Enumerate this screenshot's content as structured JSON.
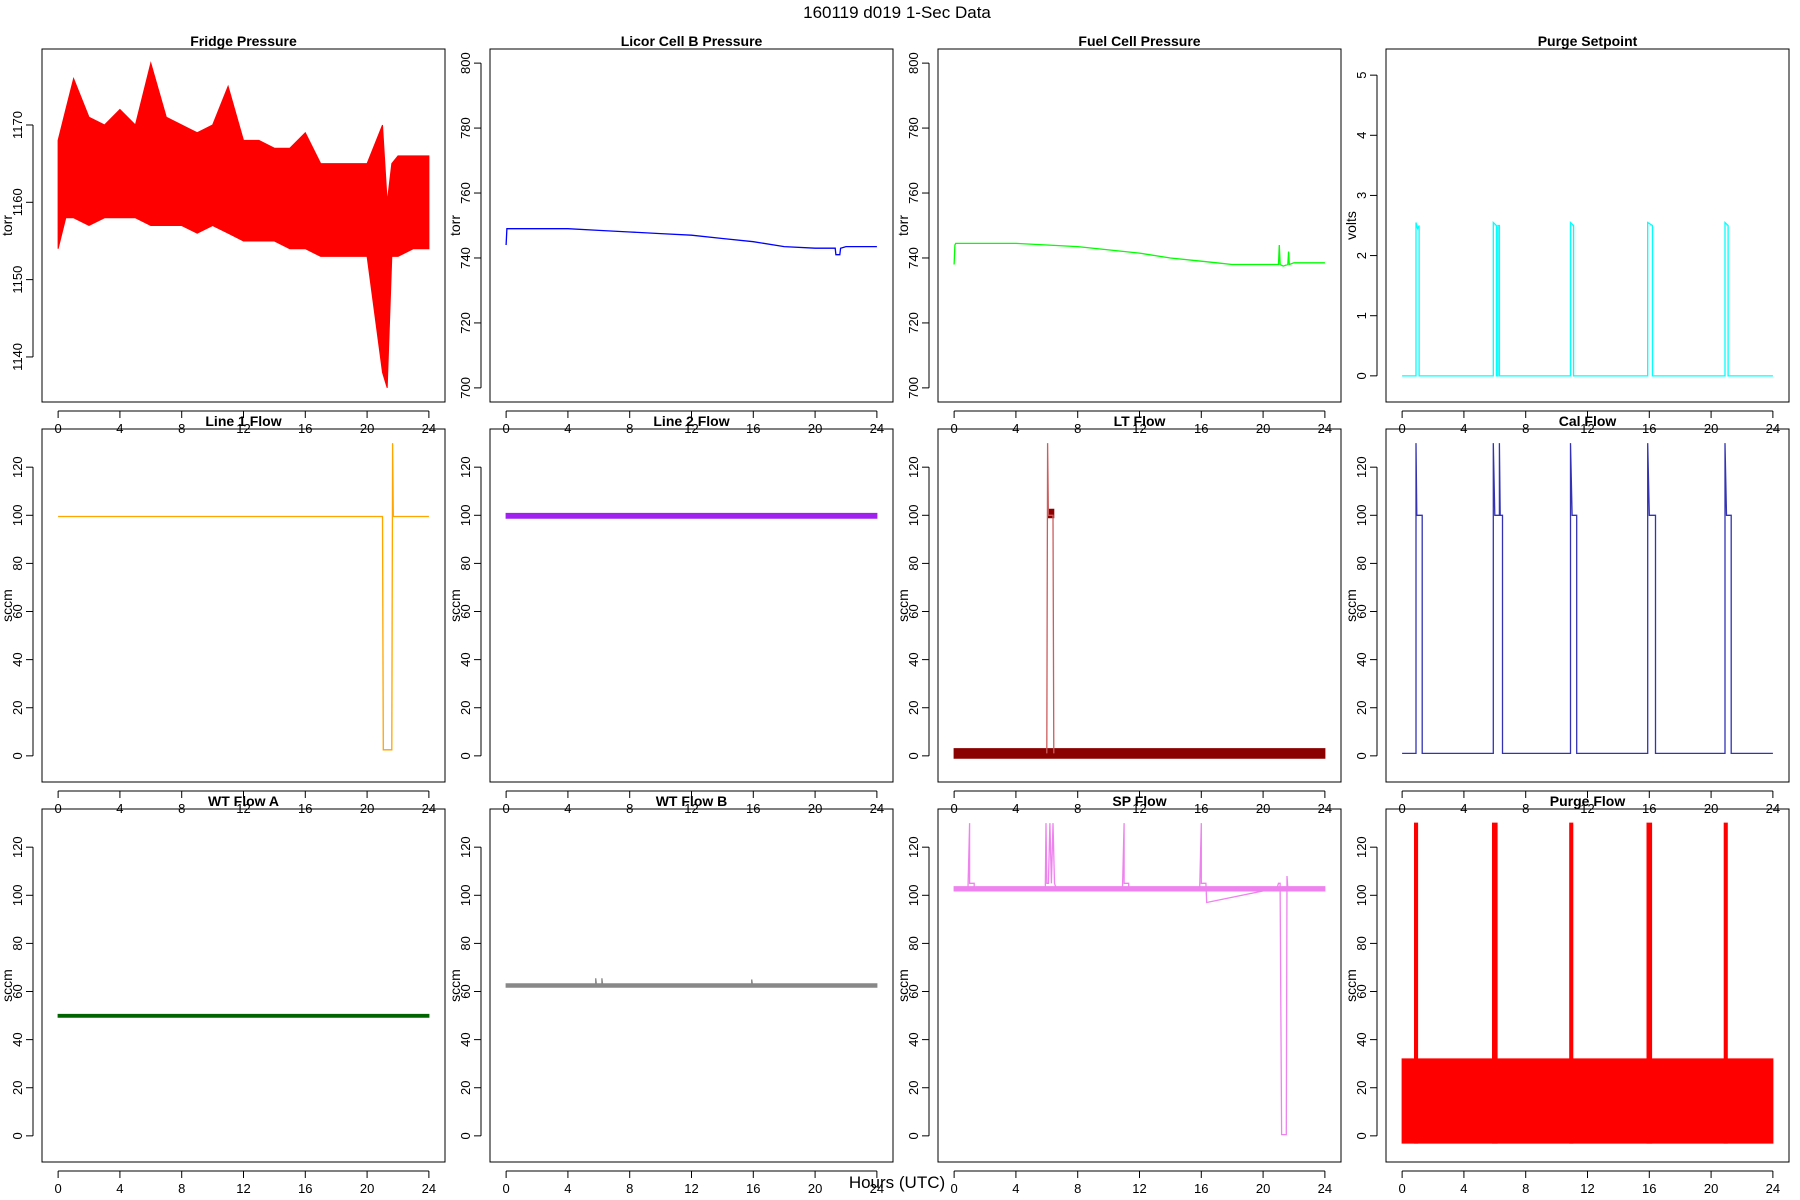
{
  "figure": {
    "title": "160119   d019   1-Sec Data",
    "xlabel": "Hours (UTC)"
  },
  "chart_data": [
    {
      "type": "line",
      "title": "Fridge Pressure",
      "ylabel": "torr",
      "color": "#ff0000",
      "xlim": [
        0,
        24
      ],
      "ylim": [
        1136,
        1178
      ],
      "xticks": [
        0,
        4,
        8,
        12,
        16,
        20,
        24
      ],
      "yticks": [
        1140,
        1150,
        1160,
        1170
      ],
      "series": [
        {
          "kind": "band",
          "color": "#ff0000",
          "x": [
            0,
            0.5,
            1,
            2,
            3,
            4,
            5,
            6,
            7,
            8,
            9,
            10,
            11,
            12,
            13,
            14,
            15,
            16,
            17,
            18,
            19,
            20,
            21,
            21.3,
            21.6,
            22,
            23,
            24
          ],
          "low": [
            1154,
            1158,
            1158,
            1157,
            1158,
            1158,
            1158,
            1157,
            1157,
            1157,
            1156,
            1157,
            1156,
            1155,
            1155,
            1155,
            1154,
            1154,
            1153,
            1153,
            1153,
            1153,
            1138,
            1136,
            1153,
            1153,
            1154,
            1154
          ],
          "high": [
            1168,
            1172,
            1176,
            1171,
            1170,
            1172,
            1170,
            1178,
            1171,
            1170,
            1169,
            1170,
            1175,
            1168,
            1168,
            1167,
            1167,
            1169,
            1165,
            1165,
            1165,
            1165,
            1170,
            1160,
            1165,
            1166,
            1166,
            1166
          ]
        }
      ]
    },
    {
      "type": "line",
      "title": "Licor Cell B Pressure",
      "ylabel": "torr",
      "color": "#0000ff",
      "xlim": [
        0,
        24
      ],
      "ylim": [
        700,
        800
      ],
      "xticks": [
        0,
        4,
        8,
        12,
        16,
        20,
        24
      ],
      "yticks": [
        700,
        720,
        740,
        760,
        780,
        800
      ],
      "series": [
        {
          "kind": "line",
          "color": "#0000ff",
          "x": [
            0,
            0.05,
            0.1,
            2,
            4,
            6,
            8,
            10,
            12,
            14,
            16,
            18,
            20,
            21,
            21.3,
            21.35,
            21.6,
            21.65,
            22,
            24
          ],
          "y": [
            744,
            749,
            749,
            749,
            749,
            748.5,
            748,
            747.5,
            747,
            746,
            745,
            743.5,
            743,
            743,
            743,
            741,
            741,
            743,
            743.5,
            743.5
          ]
        }
      ]
    },
    {
      "type": "line",
      "title": "Fuel Cell Pressure",
      "ylabel": "torr",
      "color": "#00ff00",
      "xlim": [
        0,
        24
      ],
      "ylim": [
        700,
        800
      ],
      "xticks": [
        0,
        4,
        8,
        12,
        16,
        20,
        24
      ],
      "yticks": [
        700,
        720,
        740,
        760,
        780,
        800
      ],
      "series": [
        {
          "kind": "line",
          "color": "#00ff00",
          "x": [
            0,
            0.05,
            0.1,
            2,
            4,
            6,
            8,
            10,
            12,
            14,
            16,
            17,
            18,
            19,
            20,
            21,
            21.05,
            21.1,
            21.3,
            21.6,
            21.65,
            21.7,
            22,
            24
          ],
          "y": [
            738,
            744,
            744.5,
            744.5,
            744.5,
            744,
            743.5,
            742.5,
            741.5,
            740,
            739,
            738.5,
            738,
            738,
            738,
            738,
            744,
            738,
            737.5,
            738,
            742,
            738,
            738.5,
            738.5
          ]
        }
      ]
    },
    {
      "type": "line",
      "title": "Purge Setpoint",
      "ylabel": "volts",
      "color": "#00ffff",
      "xlim": [
        0,
        24
      ],
      "ylim": [
        -0.2,
        5.2
      ],
      "xticks": [
        0,
        4,
        8,
        12,
        16,
        20,
        24
      ],
      "yticks": [
        0,
        1,
        2,
        3,
        4,
        5
      ],
      "series": [
        {
          "kind": "line",
          "color": "#00ffff",
          "x": [
            0,
            0.9,
            0.9,
            1.0,
            1.1,
            1.1,
            5.9,
            5.9,
            6.1,
            6.1,
            6.2,
            6.2,
            6.3,
            6.3,
            10.9,
            10.9,
            11.1,
            11.1,
            15.9,
            15.9,
            16.2,
            16.2,
            20.9,
            20.9,
            21.1,
            21.1,
            24
          ],
          "y": [
            0,
            0,
            2.55,
            2.45,
            2.5,
            0,
            0,
            2.55,
            2.5,
            0,
            0,
            2.5,
            2.5,
            0,
            0,
            2.55,
            2.5,
            0,
            0,
            2.55,
            2.5,
            0,
            0,
            2.55,
            2.5,
            0,
            0
          ]
        }
      ]
    },
    {
      "type": "line",
      "title": "Line 1 Flow",
      "ylabel": "sccm",
      "color": "#ffa500",
      "xlim": [
        0,
        24
      ],
      "ylim": [
        -5,
        130
      ],
      "xticks": [
        0,
        4,
        8,
        12,
        16,
        20,
        24
      ],
      "yticks": [
        0,
        20,
        40,
        60,
        80,
        100,
        120
      ],
      "series": [
        {
          "kind": "line",
          "color": "#ffa500",
          "x": [
            0,
            21,
            21.05,
            21.6,
            21.65,
            21.7,
            24
          ],
          "y": [
            99.5,
            99.5,
            2.5,
            2.5,
            130,
            99.5,
            99.5
          ]
        }
      ]
    },
    {
      "type": "line",
      "title": "Line 2 Flow",
      "ylabel": "sccm",
      "color": "#a020f0",
      "xlim": [
        0,
        24
      ],
      "ylim": [
        -5,
        130
      ],
      "xticks": [
        0,
        4,
        8,
        12,
        16,
        20,
        24
      ],
      "yticks": [
        0,
        20,
        40,
        60,
        80,
        100,
        120
      ],
      "series": [
        {
          "kind": "band",
          "color": "#a020f0",
          "x": [
            0,
            24
          ],
          "low": [
            98.8,
            98.8
          ],
          "high": [
            100.8,
            100.8
          ]
        }
      ]
    },
    {
      "type": "line",
      "title": "LT Flow",
      "ylabel": "sccm",
      "color": "#8b0000",
      "xlim": [
        0,
        24
      ],
      "ylim": [
        -5,
        130
      ],
      "xticks": [
        0,
        4,
        8,
        12,
        16,
        20,
        24
      ],
      "yticks": [
        0,
        20,
        40,
        60,
        80,
        100,
        120
      ],
      "series": [
        {
          "kind": "band",
          "color": "#8b0000",
          "x": [
            0,
            24
          ],
          "low": [
            -1,
            -1
          ],
          "high": [
            3,
            3
          ]
        },
        {
          "kind": "band",
          "color": "#8b0000",
          "x": [
            6.05,
            6.45
          ],
          "low": [
            99,
            99
          ],
          "high": [
            102.5,
            102.5
          ]
        },
        {
          "kind": "line",
          "color": "#cd5c5c",
          "x": [
            6.0,
            6.05,
            6.1,
            6.4,
            6.45
          ],
          "y": [
            1,
            130,
            100,
            100,
            1
          ]
        }
      ]
    },
    {
      "type": "line",
      "title": "Cal Flow",
      "ylabel": "sccm",
      "color": "#00008b",
      "xlim": [
        0,
        24
      ],
      "ylim": [
        -5,
        130
      ],
      "xticks": [
        0,
        4,
        8,
        12,
        16,
        20,
        24
      ],
      "yticks": [
        0,
        20,
        40,
        60,
        80,
        100,
        120
      ],
      "series": [
        {
          "kind": "line",
          "color": "#3333b3",
          "x": [
            0,
            0.9,
            0.9,
            0.95,
            1.05,
            1.3,
            1.3,
            5.9,
            5.9,
            6.0,
            6.1,
            6.3,
            6.3,
            6.35,
            6.5,
            6.5,
            10.9,
            10.9,
            11.0,
            11.1,
            11.3,
            11.3,
            15.9,
            15.9,
            16.0,
            16.1,
            16.4,
            16.4,
            20.9,
            20.9,
            21.0,
            21.1,
            21.3,
            21.3,
            24
          ],
          "y": [
            1,
            1,
            130,
            100,
            100,
            100,
            1,
            1,
            130,
            100,
            100,
            100,
            130,
            100,
            100,
            1,
            1,
            130,
            100,
            100,
            100,
            1,
            1,
            130,
            100,
            100,
            100,
            1,
            1,
            130,
            100,
            100,
            100,
            1,
            1
          ]
        }
      ]
    },
    {
      "type": "line",
      "title": "WT Flow A",
      "ylabel": "sccm",
      "color": "#006400",
      "xlim": [
        0,
        24
      ],
      "ylim": [
        -5,
        130
      ],
      "xticks": [
        0,
        4,
        8,
        12,
        16,
        20,
        24
      ],
      "yticks": [
        0,
        20,
        40,
        60,
        80,
        100,
        120
      ],
      "series": [
        {
          "kind": "band",
          "color": "#006400",
          "x": [
            0,
            24
          ],
          "low": [
            49.3,
            49.3
          ],
          "high": [
            50.5,
            50.5
          ]
        }
      ]
    },
    {
      "type": "line",
      "title": "WT Flow B",
      "ylabel": "sccm",
      "color": "#888888",
      "xlim": [
        0,
        24
      ],
      "ylim": [
        -5,
        130
      ],
      "xticks": [
        0,
        4,
        8,
        12,
        16,
        20,
        24
      ],
      "yticks": [
        0,
        20,
        40,
        60,
        80,
        100,
        120
      ],
      "series": [
        {
          "kind": "band",
          "color": "#888888",
          "x": [
            0,
            24
          ],
          "low": [
            61.8,
            61.8
          ],
          "high": [
            63.2,
            63.2
          ]
        },
        {
          "kind": "line",
          "color": "#888888",
          "x": [
            5.8,
            5.8,
            5.85,
            6.2,
            6.2,
            6.25,
            15.9,
            15.9,
            15.95
          ],
          "y": [
            62.5,
            65.5,
            62.5,
            62.5,
            65.5,
            62.5,
            62.5,
            65,
            62.5
          ]
        }
      ]
    },
    {
      "type": "line",
      "title": "SP Flow",
      "ylabel": "sccm",
      "color": "#ee82ee",
      "xlim": [
        0,
        24
      ],
      "ylim": [
        -5,
        130
      ],
      "xticks": [
        0,
        4,
        8,
        12,
        16,
        20,
        24
      ],
      "yticks": [
        0,
        20,
        40,
        60,
        80,
        100,
        120
      ],
      "series": [
        {
          "kind": "band",
          "color": "#ee82ee",
          "x": [
            0,
            24
          ],
          "low": [
            101.8,
            101.8
          ],
          "high": [
            103.6,
            103.6
          ]
        },
        {
          "kind": "line",
          "color": "#ee82ee",
          "x": [
            0.9,
            1.0,
            1.0,
            1.3,
            1.3,
            5.9,
            5.95,
            6.0,
            6.1,
            6.2,
            6.3,
            6.4,
            6.5,
            6.6,
            10.9,
            11.0,
            11.0,
            11.3,
            11.3,
            15.9,
            16.0,
            16.0,
            16.3,
            16.35,
            20.9,
            21.0,
            21.1,
            21.2,
            21.5,
            21.55,
            21.6
          ],
          "y": [
            103,
            130,
            105,
            105,
            103,
            103,
            130,
            105,
            105,
            130,
            105,
            130,
            105,
            103,
            103,
            130,
            105,
            105,
            103,
            103,
            130,
            105,
            105,
            97,
            103,
            105,
            105,
            0.5,
            0.5,
            108,
            103
          ]
        }
      ]
    },
    {
      "type": "line",
      "title": "Purge Flow",
      "ylabel": "sccm",
      "color": "#ff0000",
      "xlim": [
        0,
        24
      ],
      "ylim": [
        -5,
        130
      ],
      "xticks": [
        0,
        4,
        8,
        12,
        16,
        20,
        24
      ],
      "yticks": [
        0,
        20,
        40,
        60,
        80,
        100,
        120
      ],
      "series": [
        {
          "kind": "band",
          "color": "#ff0000",
          "x": [
            0,
            24
          ],
          "low": [
            -3,
            -3
          ],
          "high": [
            32,
            32
          ]
        },
        {
          "kind": "band",
          "color": "#ff0000",
          "x": [
            0.8,
            1.0
          ],
          "low": [
            -3,
            -3
          ],
          "high": [
            130,
            130
          ]
        },
        {
          "kind": "band",
          "color": "#ff0000",
          "x": [
            5.85,
            6.15
          ],
          "low": [
            -3,
            -3
          ],
          "high": [
            130,
            130
          ]
        },
        {
          "kind": "band",
          "color": "#ff0000",
          "x": [
            10.85,
            11.05
          ],
          "low": [
            -3,
            -3
          ],
          "high": [
            130,
            130
          ]
        },
        {
          "kind": "band",
          "color": "#ff0000",
          "x": [
            15.85,
            16.15
          ],
          "low": [
            -3,
            -3
          ],
          "high": [
            130,
            130
          ]
        },
        {
          "kind": "band",
          "color": "#ff0000",
          "x": [
            20.85,
            21.05
          ],
          "low": [
            -3,
            -3
          ],
          "high": [
            130,
            130
          ]
        }
      ]
    }
  ]
}
